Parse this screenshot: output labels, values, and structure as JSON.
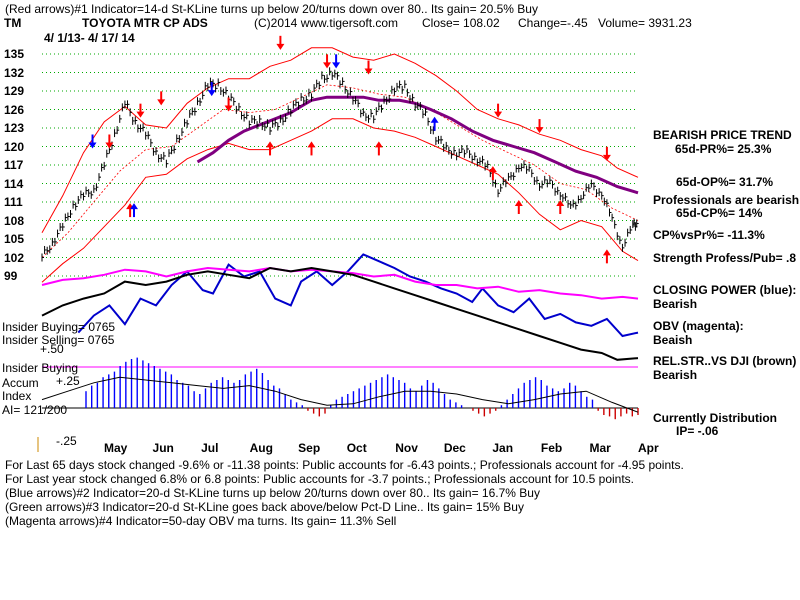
{
  "header": {
    "line1": "(Red arrows)#1 Indicator=14-d St-KLine turns up below 20/turns down over 80.. Its gain= 20.5% Buy",
    "ticker": "TM",
    "company": "TOYOTA MTR CP ADS",
    "copyright": "(C)2014 www.tigersoft.com",
    "close": "Close=  108.02",
    "change": "Change=-.45",
    "volume": "Volume= 3931.23",
    "date_range": "4/ 1/13- 4/ 17/ 14"
  },
  "colors": {
    "price": "#000000",
    "band": "#ff0000",
    "ma": "#800080",
    "closing_power": "#0000cc",
    "obv": "#ff00ff",
    "relstr": "#000000",
    "accum": "#0000ff",
    "distribution": "#cc0000",
    "guideline": "#00aa00"
  },
  "chart_data": {
    "type": "line",
    "title": "TOYOTA MTR CP ADS",
    "y_ticks": [
      "135",
      "132",
      "129",
      "126",
      "123",
      "120",
      "117",
      "114",
      "111",
      "108",
      "105",
      "102",
      "99"
    ],
    "ylim": [
      99,
      135
    ],
    "x_labels": [
      "May",
      "Jun",
      "Jul",
      "Aug",
      "Sep",
      "Oct",
      "Nov",
      "Dec",
      "Jan",
      "Feb",
      "Mar",
      "Apr"
    ],
    "price_series": [
      [
        0,
        102
      ],
      [
        4,
        104.5
      ],
      [
        8,
        107
      ],
      [
        12,
        110.5
      ],
      [
        16,
        112
      ],
      [
        20,
        113
      ],
      [
        24,
        117
      ],
      [
        28,
        122
      ],
      [
        32,
        127
      ],
      [
        36,
        124
      ],
      [
        40,
        122
      ],
      [
        44,
        119
      ],
      [
        48,
        117.5
      ],
      [
        52,
        121
      ],
      [
        56,
        124
      ],
      [
        60,
        127
      ],
      [
        64,
        130
      ],
      [
        68,
        130
      ],
      [
        72,
        128
      ],
      [
        76,
        126
      ],
      [
        80,
        124
      ],
      [
        84,
        124
      ],
      [
        88,
        123
      ],
      [
        92,
        124
      ],
      [
        96,
        126
      ],
      [
        100,
        127.5
      ],
      [
        104,
        128.5
      ],
      [
        108,
        131
      ],
      [
        112,
        132
      ],
      [
        116,
        130
      ],
      [
        120,
        128
      ],
      [
        124,
        125
      ],
      [
        128,
        125
      ],
      [
        132,
        127
      ],
      [
        136,
        129.5
      ],
      [
        140,
        129.5
      ],
      [
        144,
        127
      ],
      [
        148,
        125
      ],
      [
        152,
        121.5
      ],
      [
        156,
        119.5
      ],
      [
        160,
        119
      ],
      [
        164,
        119
      ],
      [
        168,
        118
      ],
      [
        172,
        116.5
      ],
      [
        176,
        113
      ],
      [
        180,
        114.5
      ],
      [
        184,
        117
      ],
      [
        188,
        116
      ],
      [
        192,
        114
      ],
      [
        196,
        114
      ],
      [
        200,
        112.5
      ],
      [
        204,
        110
      ],
      [
        208,
        112
      ],
      [
        212,
        113.5
      ],
      [
        216,
        112.5
      ],
      [
        220,
        108
      ],
      [
        224,
        104
      ],
      [
        228,
        107
      ],
      [
        230,
        108
      ]
    ],
    "ma_series": [
      [
        60,
        117.5
      ],
      [
        66,
        119
      ],
      [
        72,
        121
      ],
      [
        78,
        122.5
      ],
      [
        84,
        123.5
      ],
      [
        90,
        124.5
      ],
      [
        96,
        125.5
      ],
      [
        100,
        126.5
      ],
      [
        104,
        127.5
      ],
      [
        110,
        128
      ],
      [
        118,
        128
      ],
      [
        124,
        128
      ],
      [
        130,
        127.5
      ],
      [
        138,
        127.5
      ],
      [
        144,
        127
      ],
      [
        150,
        126
      ],
      [
        158,
        124.5
      ],
      [
        166,
        122.5
      ],
      [
        174,
        121
      ],
      [
        182,
        120
      ],
      [
        190,
        119
      ],
      [
        198,
        117.5
      ],
      [
        206,
        116
      ],
      [
        214,
        115
      ],
      [
        222,
        113.5
      ],
      [
        230,
        112.5
      ]
    ],
    "upper_band": [
      [
        0,
        106
      ],
      [
        8,
        112
      ],
      [
        16,
        119
      ],
      [
        24,
        124
      ],
      [
        32,
        126.5
      ],
      [
        40,
        123.5
      ],
      [
        48,
        123
      ],
      [
        56,
        127
      ],
      [
        64,
        129.5
      ],
      [
        72,
        131
      ],
      [
        80,
        131
      ],
      [
        88,
        133
      ],
      [
        96,
        134
      ],
      [
        104,
        136
      ],
      [
        112,
        136
      ],
      [
        120,
        134.5
      ],
      [
        128,
        134
      ],
      [
        136,
        135
      ],
      [
        144,
        133.5
      ],
      [
        152,
        131.5
      ],
      [
        160,
        129
      ],
      [
        168,
        126
      ],
      [
        176,
        124.5
      ],
      [
        184,
        123.5
      ],
      [
        192,
        122
      ],
      [
        200,
        121
      ],
      [
        208,
        119.5
      ],
      [
        216,
        118.5
      ],
      [
        222,
        116.5
      ],
      [
        230,
        115
      ]
    ],
    "lower_band": [
      [
        0,
        98
      ],
      [
        8,
        101
      ],
      [
        16,
        103.5
      ],
      [
        24,
        107
      ],
      [
        32,
        110.5
      ],
      [
        40,
        115
      ],
      [
        48,
        115.5
      ],
      [
        56,
        118
      ],
      [
        64,
        119.5
      ],
      [
        72,
        120.5
      ],
      [
        80,
        119.5
      ],
      [
        88,
        119.5
      ],
      [
        96,
        121
      ],
      [
        104,
        122.5
      ],
      [
        112,
        124.5
      ],
      [
        120,
        124.5
      ],
      [
        128,
        123
      ],
      [
        136,
        122.5
      ],
      [
        144,
        121.5
      ],
      [
        152,
        120
      ],
      [
        160,
        118.5
      ],
      [
        168,
        117
      ],
      [
        176,
        115.5
      ],
      [
        184,
        112.5
      ],
      [
        192,
        109
      ],
      [
        200,
        106.5
      ],
      [
        208,
        108
      ],
      [
        216,
        107
      ],
      [
        224,
        103
      ],
      [
        230,
        101.5
      ]
    ],
    "mid_band": [
      [
        0,
        102
      ],
      [
        10,
        106
      ],
      [
        20,
        111
      ],
      [
        30,
        116
      ],
      [
        40,
        119.5
      ],
      [
        50,
        120
      ],
      [
        60,
        123
      ],
      [
        70,
        126
      ],
      [
        80,
        125.5
      ],
      [
        90,
        126
      ],
      [
        100,
        128
      ],
      [
        110,
        130
      ],
      [
        120,
        129.5
      ],
      [
        130,
        128.5
      ],
      [
        140,
        128
      ],
      [
        150,
        126
      ],
      [
        160,
        123.5
      ],
      [
        170,
        121
      ],
      [
        180,
        119
      ],
      [
        190,
        117
      ],
      [
        200,
        114
      ],
      [
        210,
        113
      ],
      [
        220,
        110
      ],
      [
        230,
        108
      ]
    ],
    "red_arrows_up": [
      [
        34,
        110.5
      ],
      [
        88,
        120.5
      ],
      [
        104,
        120.5
      ],
      [
        130,
        120.5
      ],
      [
        174,
        116.5
      ],
      [
        184,
        111
      ],
      [
        200,
        111
      ],
      [
        218,
        103
      ]
    ],
    "red_arrows_down": [
      [
        26,
        120
      ],
      [
        38,
        125
      ],
      [
        46,
        127
      ],
      [
        72,
        126
      ],
      [
        92,
        136
      ],
      [
        110,
        133
      ],
      [
        126,
        132
      ],
      [
        176,
        125
      ],
      [
        192,
        122.5
      ],
      [
        218,
        118
      ]
    ],
    "blue_arrows_up": [
      [
        34,
        110.5
      ],
      [
        150,
        124.5
      ]
    ],
    "blue_arrows_down": [
      [
        18,
        120
      ],
      [
        64,
        128.5
      ],
      [
        112,
        133
      ]
    ],
    "closing_power": [
      [
        14,
        0.22
      ],
      [
        20,
        0.32
      ],
      [
        26,
        0.38
      ],
      [
        32,
        0.27
      ],
      [
        38,
        0.42
      ],
      [
        44,
        0.38
      ],
      [
        50,
        0.5
      ],
      [
        56,
        0.58
      ],
      [
        62,
        0.47
      ],
      [
        66,
        0.45
      ],
      [
        72,
        0.62
      ],
      [
        78,
        0.55
      ],
      [
        84,
        0.58
      ],
      [
        90,
        0.42
      ],
      [
        96,
        0.38
      ],
      [
        100,
        0.52
      ],
      [
        106,
        0.58
      ],
      [
        112,
        0.5
      ],
      [
        118,
        0.58
      ],
      [
        124,
        0.68
      ],
      [
        130,
        0.64
      ],
      [
        136,
        0.6
      ],
      [
        142,
        0.55
      ],
      [
        148,
        0.52
      ],
      [
        154,
        0.48
      ],
      [
        160,
        0.45
      ],
      [
        166,
        0.4
      ],
      [
        170,
        0.48
      ],
      [
        176,
        0.38
      ],
      [
        182,
        0.34
      ],
      [
        188,
        0.42
      ],
      [
        194,
        0.3
      ],
      [
        200,
        0.33
      ],
      [
        206,
        0.28
      ],
      [
        212,
        0.26
      ],
      [
        218,
        0.3
      ],
      [
        224,
        0.2
      ],
      [
        230,
        0.22
      ]
    ],
    "obv": [
      [
        0,
        0.5
      ],
      [
        8,
        0.53
      ],
      [
        16,
        0.54
      ],
      [
        24,
        0.56
      ],
      [
        32,
        0.59
      ],
      [
        40,
        0.58
      ],
      [
        48,
        0.55
      ],
      [
        56,
        0.58
      ],
      [
        64,
        0.6
      ],
      [
        72,
        0.59
      ],
      [
        80,
        0.58
      ],
      [
        88,
        0.6
      ],
      [
        96,
        0.58
      ],
      [
        104,
        0.59
      ],
      [
        112,
        0.58
      ],
      [
        120,
        0.57
      ],
      [
        128,
        0.55
      ],
      [
        136,
        0.56
      ],
      [
        144,
        0.52
      ],
      [
        152,
        0.5
      ],
      [
        160,
        0.5
      ],
      [
        168,
        0.48
      ],
      [
        176,
        0.49
      ],
      [
        184,
        0.46
      ],
      [
        192,
        0.47
      ],
      [
        200,
        0.45
      ],
      [
        208,
        0.44
      ],
      [
        216,
        0.42
      ],
      [
        224,
        0.43
      ],
      [
        230,
        0.42
      ]
    ],
    "relstr": [
      [
        0,
        0.32
      ],
      [
        8,
        0.38
      ],
      [
        16,
        0.42
      ],
      [
        24,
        0.45
      ],
      [
        32,
        0.52
      ],
      [
        40,
        0.5
      ],
      [
        48,
        0.52
      ],
      [
        56,
        0.56
      ],
      [
        64,
        0.58
      ],
      [
        72,
        0.56
      ],
      [
        80,
        0.54
      ],
      [
        88,
        0.6
      ],
      [
        96,
        0.58
      ],
      [
        104,
        0.6
      ],
      [
        112,
        0.58
      ],
      [
        120,
        0.56
      ],
      [
        128,
        0.52
      ],
      [
        136,
        0.48
      ],
      [
        144,
        0.44
      ],
      [
        152,
        0.4
      ],
      [
        160,
        0.36
      ],
      [
        168,
        0.32
      ],
      [
        176,
        0.28
      ],
      [
        184,
        0.24
      ],
      [
        192,
        0.2
      ],
      [
        200,
        0.16
      ],
      [
        208,
        0.12
      ],
      [
        216,
        0.1
      ],
      [
        222,
        0.06
      ],
      [
        230,
        0.07
      ]
    ],
    "accum_index": [
      0.12,
      0.16,
      0.18,
      0.22,
      0.24,
      0.26,
      0.3,
      0.33,
      0.35,
      0.36,
      0.34,
      0.32,
      0.3,
      0.28,
      0.26,
      0.24,
      0.2,
      0.18,
      0.16,
      0.12,
      0.1,
      0.14,
      0.18,
      0.2,
      0.22,
      0.2,
      0.18,
      0.2,
      0.24,
      0.26,
      0.28,
      0.25,
      0.2,
      0.16,
      0.14,
      0.1,
      0.06,
      0.04,
      0.02,
      -0.02,
      -0.04,
      -0.06,
      -0.04,
      0.02,
      0.06,
      0.08,
      0.1,
      0.12,
      0.14,
      0.16,
      0.18,
      0.2,
      0.22,
      0.24,
      0.22,
      0.2,
      0.18,
      0.14,
      0.12,
      0.16,
      0.2,
      0.18,
      0.14,
      0.1,
      0.06,
      0.04,
      0.02,
      0.0,
      -0.02,
      -0.04,
      -0.06,
      -0.04,
      -0.02,
      0.02,
      0.06,
      0.1,
      0.14,
      0.18,
      0.2,
      0.22,
      0.2,
      0.16,
      0.14,
      0.12,
      0.14,
      0.18,
      0.16,
      0.12,
      0.08,
      0.06,
      -0.02,
      -0.05,
      -0.06,
      -0.08,
      -0.06,
      -0.04,
      -0.06,
      -0.05
    ],
    "accum_ma": [
      [
        0,
        0.06
      ],
      [
        10,
        0.12
      ],
      [
        20,
        0.18
      ],
      [
        30,
        0.22
      ],
      [
        40,
        0.2
      ],
      [
        50,
        0.18
      ],
      [
        60,
        0.16
      ],
      [
        70,
        0.14
      ],
      [
        80,
        0.16
      ],
      [
        90,
        0.12
      ],
      [
        100,
        0.06
      ],
      [
        110,
        0.02
      ],
      [
        120,
        0.03
      ],
      [
        130,
        0.08
      ],
      [
        140,
        0.12
      ],
      [
        150,
        0.12
      ],
      [
        160,
        0.1
      ],
      [
        170,
        0.06
      ],
      [
        180,
        0.03
      ],
      [
        190,
        0.06
      ],
      [
        200,
        0.1
      ],
      [
        210,
        0.12
      ],
      [
        220,
        0.04
      ],
      [
        230,
        -0.03
      ]
    ],
    "accum_ticks": [
      "+.25",
      "-.25"
    ]
  },
  "left_labels": {
    "insider_buying1": "Insider Buying= 0765",
    "insider_selling": "Insider Selling= 0765",
    "plus50": "+.50",
    "insider_buying2": "Insider Buying",
    "accum": "Accum",
    "index": "Index",
    "ai": "AI= 121/200"
  },
  "right_panel": {
    "trend_title": "BEARISH PRICE TREND",
    "pr": "65d-PR%= 25.3%",
    "op": "65d-OP%= 31.7%",
    "pros": "Professionals are bearish",
    "cp": "65d-CP%= 14%",
    "cpvspr": "CP%vsPr%= -11.3%",
    "strength": "Strength Profess/Pub= .8",
    "closing_power": "CLOSING POWER (blue):",
    "cp_state": "Bearish",
    "obv": "OBV (magenta):",
    "obv_state": "Beaish",
    "relstr": "REL.STR..VS DJI (brown)",
    "relstr_state": "Bearish",
    "dist": "Currently Distribution",
    "ip": "IP= -.06"
  },
  "footer": {
    "line1": "For Last 65 days stock changed -9.6% or -11.38 points:  Public accounts for -6.43 points.;  Professionals account for -4.95 points.",
    "line2": "For Last year stock changed  6.8% or  6.8 points:  Public accounts for -3.7 points.;  Professionals account for  10.5 points.",
    "line3": "(Blue arrows)#2 Indicator=20-d St-KLine turns up below 20/turns down over 80.. Its gain= 16.7% Buy",
    "line4": "(Green arrows)#3 Indicator=20-d St-KLine goes back above/below Pct-D Line.. Its gain= 15% Buy",
    "line5": "(Magenta arrows)#4 Indicator=50-day OBV ma turns. Its gain= 11.3% Sell"
  }
}
